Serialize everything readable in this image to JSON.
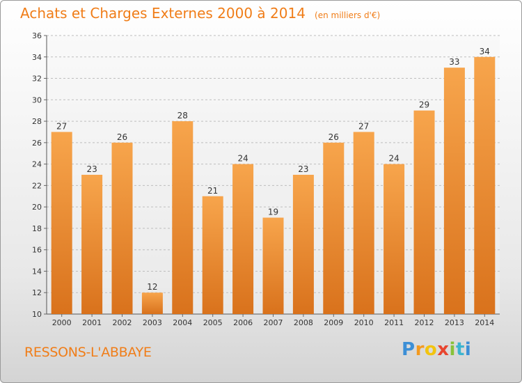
{
  "header": {
    "title": "Achats et Charges Externes 2000 à 2014",
    "subtitle": "(en milliers d'€)"
  },
  "footer": {
    "commune": "RESSONS-L'ABBAYE",
    "logo_text": "Proxiti",
    "logo_colors": [
      "#3c8fd6",
      "#f39a1f",
      "#f2c40f",
      "#e8452f",
      "#88c23a",
      "#3cb4cf"
    ]
  },
  "colors": {
    "accent": "#f07d18",
    "bar_top": "#f7a54c",
    "bar_bottom": "#d9721c",
    "grid": "#bdbdbd",
    "axis_text": "#333333"
  },
  "chart_data": {
    "type": "bar",
    "title": "Achats et Charges Externes 2000 à 2014",
    "subtitle": "(en milliers d'€)",
    "categories": [
      "2000",
      "2001",
      "2002",
      "2003",
      "2004",
      "2005",
      "2006",
      "2007",
      "2008",
      "2009",
      "2010",
      "2011",
      "2012",
      "2013",
      "2014"
    ],
    "values": [
      27,
      23,
      26,
      12,
      28,
      21,
      24,
      19,
      23,
      26,
      27,
      24,
      29,
      33,
      34
    ],
    "data_labels": [
      "27",
      "23",
      "26",
      "12",
      "28",
      "21",
      "24",
      "19",
      "23",
      "26",
      "27",
      "24",
      "29",
      "33",
      "34"
    ],
    "ylim": [
      10,
      36
    ],
    "yticks": [
      10,
      12,
      14,
      16,
      18,
      20,
      22,
      24,
      26,
      28,
      30,
      32,
      34,
      36
    ],
    "grid": true,
    "xlabel": "",
    "ylabel": ""
  }
}
